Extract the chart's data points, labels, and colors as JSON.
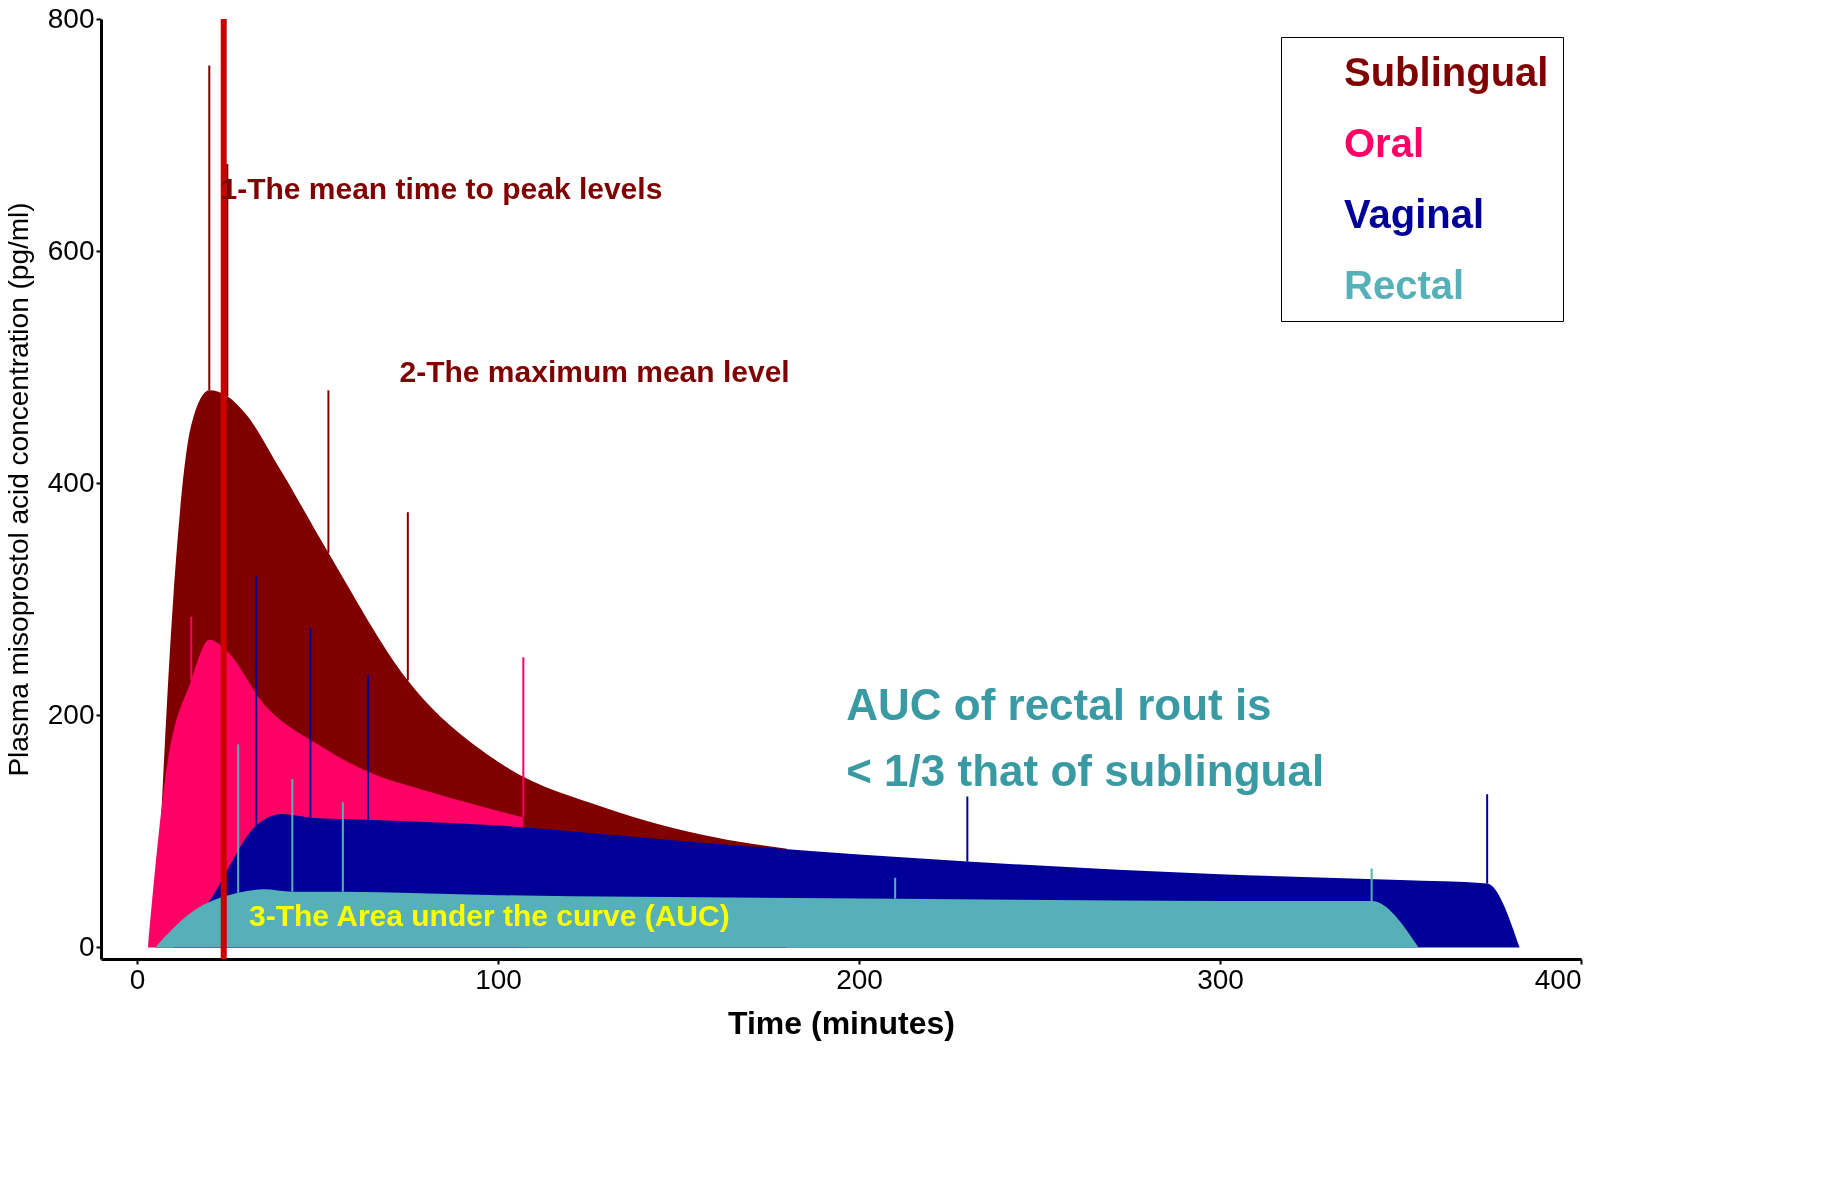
{
  "chart_data": {
    "type": "area",
    "xlabel": "Time (minutes)",
    "ylabel": "Plasma misoprostol acid concentration (pg/ml)",
    "xlim": [
      -10,
      400
    ],
    "xticks": [
      0,
      100,
      200,
      300,
      400
    ],
    "ylim": [
      -10,
      800
    ],
    "yticks": [
      0,
      200,
      400,
      600,
      800
    ],
    "grid": false,
    "legend": "top right",
    "series": [
      {
        "name": "Sublingual",
        "color": "#800000",
        "x": [
          5,
          10,
          15,
          20,
          25,
          30,
          40,
          53,
          75,
          100,
          130,
          160,
          180
        ],
        "values": [
          0,
          300,
          450,
          480,
          475,
          460,
          410,
          340,
          230,
          160,
          120,
          95,
          85
        ],
        "errors": [
          null,
          null,
          null,
          [
            480,
            760
          ],
          [
            475,
            675
          ],
          null,
          null,
          [
            340,
            480
          ],
          [
            230,
            375
          ],
          null,
          null,
          null,
          null
        ]
      },
      {
        "name": "Oral",
        "color": "#ff0066",
        "x": [
          3,
          8,
          15,
          20,
          25,
          35,
          50,
          65,
          80,
          107
        ],
        "values": [
          0,
          150,
          230,
          265,
          255,
          210,
          175,
          150,
          135,
          112
        ],
        "errors": [
          null,
          null,
          [
            230,
            285
          ],
          null,
          null,
          null,
          null,
          null,
          null,
          [
            112,
            250
          ]
        ]
      },
      {
        "name": "Vaginal",
        "color": "#000099",
        "x": [
          10,
          20,
          33,
          40,
          48,
          64,
          100,
          150,
          200,
          230,
          300,
          350,
          374,
          383
        ],
        "values": [
          0,
          40,
          105,
          115,
          112,
          110,
          105,
          92,
          80,
          74,
          63,
          58,
          55,
          0
        ],
        "errors": [
          null,
          null,
          [
            105,
            320
          ],
          null,
          [
            112,
            275
          ],
          [
            110,
            235
          ],
          null,
          null,
          null,
          [
            74,
            130
          ],
          null,
          null,
          [
            55,
            132
          ],
          null
        ]
      },
      {
        "name": "Rectal",
        "color": "#55b0b8",
        "x": [
          5,
          15,
          28,
          35,
          43,
          57,
          100,
          210,
          300,
          342,
          355
        ],
        "values": [
          0,
          30,
          47,
          50,
          48,
          48,
          45,
          42,
          40,
          40,
          0
        ],
        "errors": [
          null,
          null,
          [
            47,
            175
          ],
          null,
          [
            48,
            145
          ],
          [
            48,
            125
          ],
          null,
          [
            42,
            60
          ],
          null,
          [
            40,
            68
          ],
          null
        ]
      }
    ],
    "ref_lines": [
      {
        "axis": "x",
        "value": 24,
        "color": "#cc0000"
      }
    ],
    "annotations": [
      "1-The mean time to peak levels",
      "2-The maximum mean level",
      "AUC of rectal rout  is\n < 1/3 that of  sublingual",
      "3-The Area under the curve (AUC)"
    ]
  }
}
